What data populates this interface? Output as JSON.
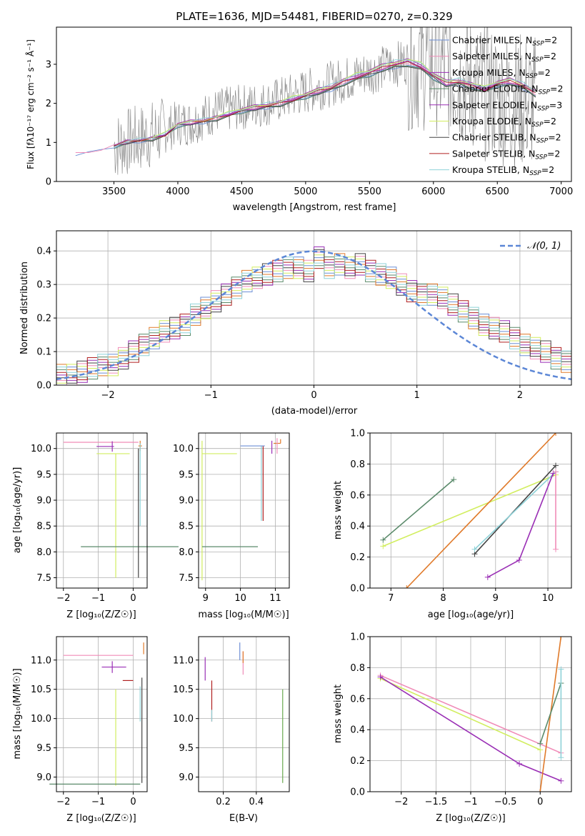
{
  "figure_title": "PLATE=1636, MJD=54481, FIBERID=0270, z=0.329",
  "colors": {
    "Chabrier MILES": "#6d8fd6",
    "Salpeter MILES": "#f08cb8",
    "Kroupa MILES": "#9a2fb5",
    "Chabrier ELODIE": "#5a8a6a",
    "Salpeter ELODIE": "#9a2fb5",
    "Kroupa ELODIE": "#d2ee60",
    "Chabrier STELIB": "#444444",
    "Salpeter STELIB": "#b02020",
    "Kroupa STELIB": "#8ed2d8",
    "data": "#808080",
    "gaussian": "#5b86d6",
    "orange": "#e07a2a",
    "grid": "#b0b0b0"
  },
  "chart_data": [
    {
      "id": "spectrum",
      "type": "line",
      "title": "PLATE=1636, MJD=54481, FIBERID=0270, z=0.329",
      "xlabel": "wavelength [Angstrom, rest frame]",
      "ylabel": "Flux [fλ10⁻¹⁷ erg cm⁻² s⁻¹ Å⁻¹]",
      "xlim": [
        3050,
        7080
      ],
      "ylim": [
        0,
        3.95
      ],
      "xticks": [
        3500,
        4000,
        4500,
        5000,
        5500,
        6000,
        6500,
        7000
      ],
      "yticks": [
        0,
        1,
        2,
        3
      ],
      "grid": false,
      "legend_position": "top-right",
      "legend": [
        "Chabrier MILES, N_SSP=2",
        "Salpeter MILES, N_SSP=2",
        "Kroupa MILES, N_SSP=2",
        "Chabrier ELODIE, N_SSP=2",
        "Salpeter ELODIE, N_SSP=3",
        "Kroupa ELODIE, N_SSP=2",
        "Chabrier STELIB, N_SSP=2",
        "Salpeter STELIB, N_SSP=2",
        "Kroupa STELIB, N_SSP=2"
      ],
      "data_x": [
        3500,
        3700,
        3900,
        4000,
        4100,
        4300,
        4500,
        4700,
        4900,
        5100,
        5300,
        5500,
        5700,
        5850,
        6000,
        6200,
        6400,
        6600,
        6800
      ],
      "data_y": [
        0.9,
        1.1,
        1.3,
        1.5,
        1.5,
        1.8,
        1.9,
        2.0,
        2.2,
        2.4,
        2.6,
        2.8,
        3.0,
        3.1,
        3.0,
        2.7,
        2.3,
        2.1,
        2.0
      ],
      "model_x": [
        3200,
        3300,
        3400,
        3500,
        3600,
        3700,
        3800,
        3900,
        4000,
        4100,
        4200,
        4300,
        4400,
        4500,
        4600,
        4700,
        4800,
        4900,
        5000,
        5100,
        5200,
        5300,
        5400,
        5500,
        5600,
        5700,
        5800,
        5900,
        6000,
        6100,
        6200,
        6300,
        6400,
        6500,
        6600,
        6700,
        6800
      ],
      "model_y": [
        0.72,
        0.78,
        0.8,
        0.9,
        1.0,
        1.05,
        1.1,
        1.2,
        1.45,
        1.5,
        1.55,
        1.62,
        1.72,
        1.82,
        1.88,
        1.94,
        2.0,
        2.1,
        2.2,
        2.3,
        2.4,
        2.55,
        2.68,
        2.78,
        2.9,
        3.0,
        3.05,
        2.95,
        2.7,
        2.5,
        2.55,
        2.45,
        2.35,
        2.5,
        2.55,
        2.45,
        2.25
      ]
    },
    {
      "id": "residuals",
      "type": "histogram",
      "xlabel": "(data-model)/error",
      "ylabel": "Normed distribution",
      "xlim": [
        -2.5,
        2.5
      ],
      "ylim": [
        0,
        0.46
      ],
      "xticks": [
        -2,
        -1,
        0,
        1,
        2
      ],
      "yticks": [
        0.0,
        0.1,
        0.2,
        0.3,
        0.4
      ],
      "grid": true,
      "legend_position": "top-right",
      "gaussian_label": "𝒩(0, 1)",
      "bins": [
        -2.5,
        -2.4,
        -2.3,
        -2.2,
        -2.1,
        -2.0,
        -1.9,
        -1.8,
        -1.7,
        -1.6,
        -1.5,
        -1.4,
        -1.3,
        -1.2,
        -1.1,
        -1.0,
        -0.9,
        -0.8,
        -0.7,
        -0.6,
        -0.5,
        -0.4,
        -0.3,
        -0.2,
        -0.1,
        0.0,
        0.1,
        0.2,
        0.3,
        0.4,
        0.5,
        0.6,
        0.7,
        0.8,
        0.9,
        1.0,
        1.1,
        1.2,
        1.3,
        1.4,
        1.5,
        1.6,
        1.7,
        1.8,
        1.9,
        2.0,
        2.1,
        2.2,
        2.3,
        2.4,
        2.5
      ],
      "base_heights": [
        0.03,
        0.03,
        0.04,
        0.05,
        0.06,
        0.06,
        0.08,
        0.1,
        0.12,
        0.14,
        0.16,
        0.17,
        0.18,
        0.21,
        0.23,
        0.25,
        0.27,
        0.29,
        0.31,
        0.32,
        0.33,
        0.34,
        0.35,
        0.35,
        0.34,
        0.38,
        0.35,
        0.36,
        0.35,
        0.36,
        0.34,
        0.33,
        0.32,
        0.3,
        0.28,
        0.27,
        0.27,
        0.26,
        0.24,
        0.22,
        0.2,
        0.18,
        0.17,
        0.16,
        0.14,
        0.12,
        0.11,
        0.1,
        0.08,
        0.07
      ]
    },
    {
      "id": "age-vs-Z",
      "type": "scatter",
      "xlabel": "Z [log₁₀(Z/Z☉)]",
      "ylabel": "age  [log₁₀(age/yr)]",
      "xlim": [
        -2.2,
        0.4
      ],
      "ylim": [
        7.3,
        10.3
      ],
      "xticks": [
        -2,
        -1,
        0
      ],
      "yticks": [
        7.5,
        8.0,
        8.5,
        9.0,
        9.5,
        10.0
      ],
      "grid": true
    },
    {
      "id": "age-vs-mass",
      "type": "scatter",
      "xlabel": "mass [log₁₀(M/M☉)]",
      "xlim": [
        8.8,
        11.4
      ],
      "ylim": [
        7.3,
        10.3
      ],
      "xticks": [
        9,
        10,
        11
      ],
      "yticks": [
        7.5,
        8.0,
        8.5,
        9.0,
        9.5,
        10.0
      ],
      "grid": true
    },
    {
      "id": "weight-vs-age",
      "type": "line",
      "xlabel": "age  [log₁₀(age/yr)]",
      "ylabel": "mass weight",
      "xlim": [
        6.6,
        10.45
      ],
      "ylim": [
        0,
        1.0
      ],
      "xticks": [
        7,
        8,
        9,
        10
      ],
      "yticks": [
        0.0,
        0.2,
        0.4,
        0.6,
        0.8,
        1.0
      ],
      "grid": true,
      "series": [
        {
          "x": [
            6.85,
            8.2
          ],
          "y": [
            0.31,
            0.7
          ]
        },
        {
          "x": [
            6.85,
            10.15
          ],
          "y": [
            0.27,
            0.73
          ]
        },
        {
          "x": [
            7.3,
            10.15
          ],
          "y": [
            0.0,
            1.0
          ]
        },
        {
          "x": [
            8.6,
            10.15
          ],
          "y": [
            0.22,
            0.79
          ]
        },
        {
          "x": [
            8.6,
            10.15
          ],
          "y": [
            0.25,
            0.75
          ]
        },
        {
          "x": [
            8.85,
            9.45,
            10.1
          ],
          "y": [
            0.07,
            0.18,
            0.74
          ]
        },
        {
          "x": [
            10.15,
            10.15
          ],
          "y": [
            0.75,
            0.25
          ]
        }
      ]
    },
    {
      "id": "mass-vs-Z",
      "type": "scatter",
      "xlabel": "Z [log₁₀(Z/Z☉)]",
      "ylabel": "mass [log₁₀(M/M☉)]",
      "xlim": [
        -2.2,
        0.4
      ],
      "ylim": [
        8.75,
        11.4
      ],
      "xticks": [
        -2,
        -1,
        0
      ],
      "yticks": [
        9.0,
        9.5,
        10.0,
        10.5,
        11.0
      ],
      "grid": true
    },
    {
      "id": "mass-vs-ebv",
      "type": "scatter",
      "xlabel": "E(B-V)",
      "xlim": [
        0.05,
        0.6
      ],
      "ylim": [
        8.75,
        11.4
      ],
      "xticks": [
        0.2,
        0.4
      ],
      "yticks": [
        9.0,
        9.5,
        10.0,
        10.5,
        11.0
      ],
      "grid": true
    },
    {
      "id": "weight-vs-Z",
      "type": "line",
      "xlabel": "Z [log₁₀(Z/Z☉)]",
      "ylabel": "mass weight",
      "xlim": [
        -2.45,
        0.45
      ],
      "ylim": [
        0,
        1.0
      ],
      "xticks": [
        -2.0,
        -1.5,
        -1.0,
        -0.5,
        0.0
      ],
      "yticks": [
        0.0,
        0.2,
        0.4,
        0.6,
        0.8,
        1.0
      ],
      "grid": true,
      "series": [
        {
          "x": [
            -2.3,
            0.3
          ],
          "y": [
            0.75,
            0.25
          ]
        },
        {
          "x": [
            -2.3,
            0.0
          ],
          "y": [
            0.73,
            0.27
          ]
        },
        {
          "x": [
            -2.3,
            -0.3,
            0.3
          ],
          "y": [
            0.74,
            0.18,
            0.07
          ]
        },
        {
          "x": [
            0.0,
            0.3
          ],
          "y": [
            0.0,
            1.0
          ]
        },
        {
          "x": [
            0.0,
            0.3
          ],
          "y": [
            0.31,
            0.7
          ]
        },
        {
          "x": [
            0.3,
            0.3
          ],
          "y": [
            0.22,
            0.79
          ]
        }
      ]
    }
  ]
}
